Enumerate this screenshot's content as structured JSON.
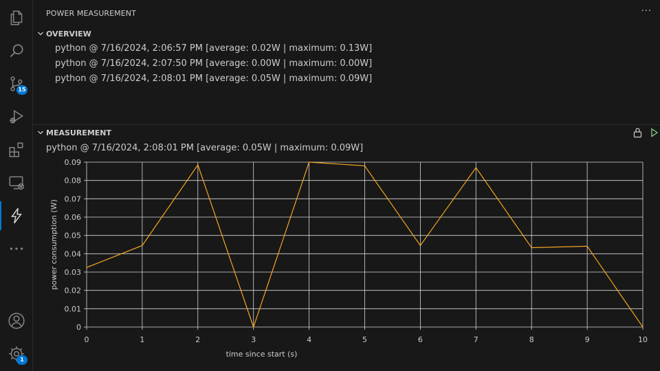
{
  "activity_bar": {
    "source_control_badge": "15",
    "accounts_badge": "1"
  },
  "sidebar": {
    "title": "POWER MEASUREMENT",
    "more_actions": "···"
  },
  "overview": {
    "header": "OVERVIEW",
    "items": [
      "python @ 7/16/2024, 2:06:57 PM [average: 0.02W | maximum: 0.13W]",
      "python @ 7/16/2024, 2:07:50 PM [average: 0.00W | maximum: 0.00W]",
      "python @ 7/16/2024, 2:08:01 PM [average: 0.05W | maximum: 0.09W]"
    ]
  },
  "measurement": {
    "header": "MEASUREMENT",
    "title": "python @ 7/16/2024, 2:08:01 PM [average: 0.05W | maximum: 0.09W]"
  },
  "chart_data": {
    "type": "line",
    "x": [
      0,
      1,
      2,
      3,
      4,
      5,
      6,
      7,
      8,
      9,
      10
    ],
    "series": [
      {
        "values": [
          0.0325,
          0.0445,
          0.0885,
          0.0,
          0.09,
          0.088,
          0.0445,
          0.087,
          0.0433,
          0.0441,
          0.0
        ]
      }
    ],
    "xlabel": "time since start (s)",
    "ylabel": "power consumption (W)",
    "xlim": [
      0,
      10
    ],
    "ylim": [
      0,
      0.09
    ],
    "x_ticks": [
      "0",
      "1",
      "2",
      "3",
      "4",
      "5",
      "6",
      "7",
      "8",
      "9",
      "10"
    ],
    "y_ticks": [
      "0",
      "0.01",
      "0.02",
      "0.03",
      "0.04",
      "0.05",
      "0.06",
      "0.07",
      "0.08",
      "0.09"
    ],
    "grid": true,
    "line_color": "#f5a623"
  }
}
